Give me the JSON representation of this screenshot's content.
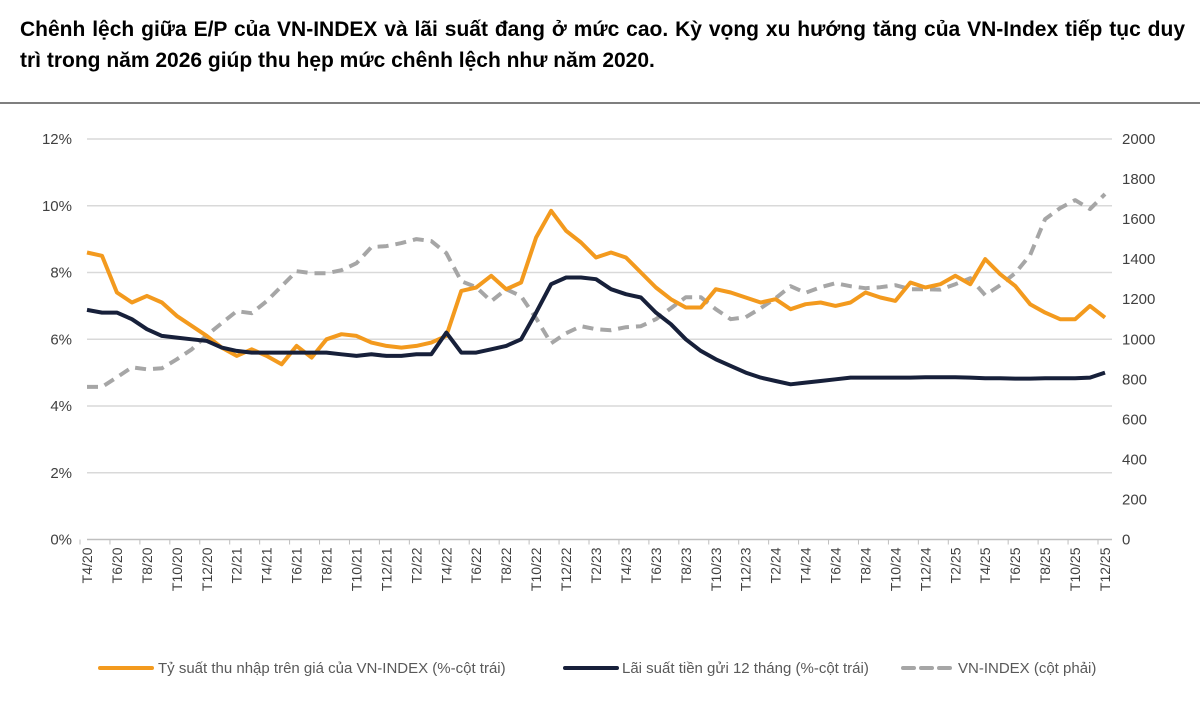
{
  "title": "Chênh lệch giữa E/P của VN-INDEX và lãi suất đang ở mức cao. Kỳ vọng xu hướng tăng của VN-Index tiếp tục duy trì trong năm 2026 giúp thu hẹp mức chênh lệch như năm 2020.",
  "chart_data": {
    "type": "line",
    "grid": true,
    "legend_position": "bottom",
    "x_tick_labels": [
      "T4/20",
      "T6/20",
      "T8/20",
      "T10/20",
      "T12/20",
      "T2/21",
      "T4/21",
      "T6/21",
      "T8/21",
      "T10/21",
      "T12/21",
      "T2/22",
      "T4/22",
      "T6/22",
      "T8/22",
      "T10/22",
      "T12/22",
      "T2/23",
      "T4/23",
      "T6/23",
      "T8/23",
      "T10/23",
      "T12/23",
      "T2/24",
      "T4/24",
      "T6/24",
      "T8/24",
      "T10/24",
      "T12/24",
      "T2/25",
      "T4/25",
      "T6/25",
      "T8/25",
      "T10/25",
      "T12/25"
    ],
    "x_range": [
      "T4/20",
      "T12/25"
    ],
    "y_left": {
      "ticks": [
        "0%",
        "2%",
        "4%",
        "6%",
        "8%",
        "10%",
        "12%"
      ],
      "range": [
        0,
        12
      ]
    },
    "y_right": {
      "ticks": [
        "0",
        "200",
        "400",
        "600",
        "800",
        "1000",
        "1200",
        "1400",
        "1600",
        "1800",
        "2000"
      ],
      "range": [
        0,
        2000
      ]
    },
    "series": [
      {
        "name": "Tỷ suất thu nhập trên giá của VN-INDEX (%-cột trái)",
        "axis": "left",
        "color": "#F39A1E",
        "style": "solid",
        "values": [
          8.6,
          8.5,
          7.4,
          7.1,
          7.3,
          7.1,
          6.7,
          6.4,
          6.1,
          5.75,
          5.5,
          5.7,
          5.5,
          5.25,
          5.8,
          5.45,
          6.0,
          6.15,
          6.1,
          5.9,
          5.8,
          5.75,
          5.8,
          5.9,
          6.1,
          7.45,
          7.55,
          7.9,
          7.5,
          7.7,
          9.05,
          9.85,
          9.25,
          8.9,
          8.45,
          8.6,
          8.45,
          8.0,
          7.55,
          7.2,
          6.95,
          6.95,
          7.5,
          7.4,
          7.25,
          7.1,
          7.2,
          6.9,
          7.05,
          7.1,
          7.0,
          7.1,
          7.4,
          7.25,
          7.15,
          7.7,
          7.55,
          7.65,
          7.9,
          7.65,
          8.4,
          7.95,
          7.6,
          7.05,
          6.8,
          6.6,
          6.6,
          7.0,
          6.65
        ]
      },
      {
        "name": "Lãi suất tiền gửi 12 tháng (%-cột trái)",
        "axis": "left",
        "color": "#17203A",
        "style": "solid",
        "values": [
          6.88,
          6.8,
          6.8,
          6.6,
          6.3,
          6.1,
          6.05,
          6.0,
          5.95,
          5.75,
          5.65,
          5.6,
          5.6,
          5.6,
          5.6,
          5.6,
          5.6,
          5.55,
          5.5,
          5.55,
          5.5,
          5.5,
          5.55,
          5.55,
          6.2,
          5.6,
          5.6,
          5.7,
          5.8,
          6.0,
          6.8,
          7.65,
          7.85,
          7.85,
          7.8,
          7.5,
          7.35,
          7.25,
          6.8,
          6.45,
          6.0,
          5.65,
          5.4,
          5.2,
          5.0,
          4.85,
          4.75,
          4.65,
          4.7,
          4.75,
          4.8,
          4.85,
          4.85,
          4.85,
          4.85,
          4.85,
          4.86,
          4.86,
          4.86,
          4.85,
          4.83,
          4.83,
          4.82,
          4.82,
          4.83,
          4.83,
          4.83,
          4.85,
          5.0
        ]
      },
      {
        "name": "VN-INDEX (cột phải)",
        "axis": "right",
        "color": "#A6A6A6",
        "style": "dashed",
        "values": [
          762,
          762,
          810,
          860,
          850,
          855,
          900,
          950,
          1020,
          1080,
          1140,
          1130,
          1190,
          1265,
          1340,
          1330,
          1330,
          1345,
          1380,
          1460,
          1465,
          1480,
          1500,
          1490,
          1430,
          1290,
          1260,
          1190,
          1250,
          1215,
          1105,
          980,
          1030,
          1065,
          1050,
          1045,
          1060,
          1065,
          1100,
          1155,
          1210,
          1210,
          1150,
          1100,
          1110,
          1155,
          1205,
          1265,
          1232,
          1260,
          1280,
          1265,
          1255,
          1260,
          1270,
          1250,
          1250,
          1248,
          1275,
          1305,
          1220,
          1270,
          1330,
          1420,
          1600,
          1655,
          1695,
          1650,
          1725
        ]
      }
    ]
  }
}
